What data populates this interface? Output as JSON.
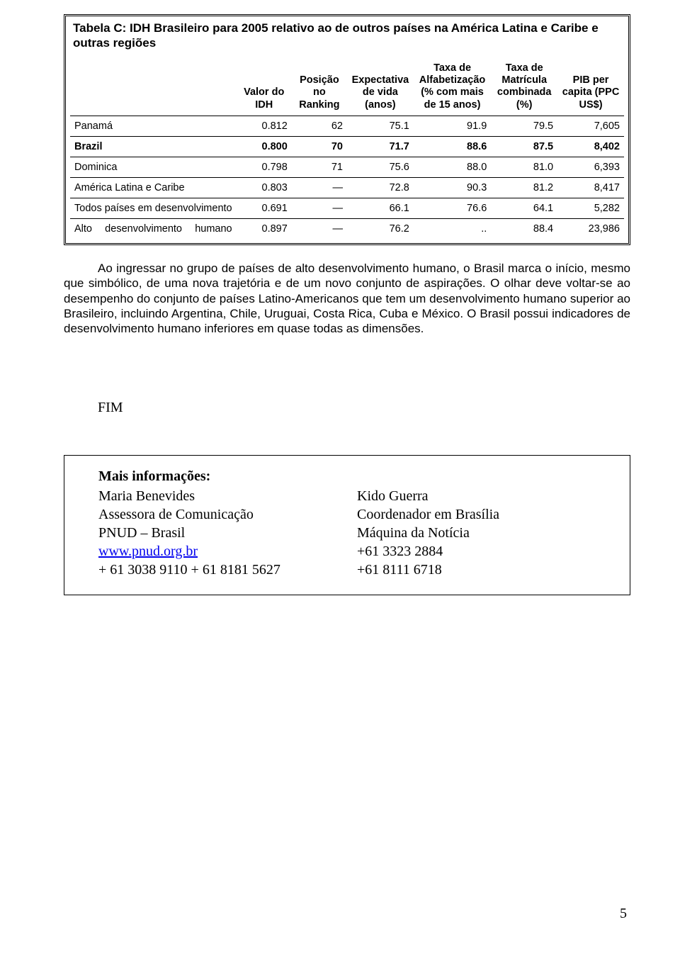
{
  "table": {
    "title": "Tabela C: IDH Brasileiro para 2005 relativo ao de outros países na América Latina e Caribe e outras regiões",
    "columns": [
      "",
      "Valor do IDH",
      "Posição no Ranking",
      "Expectativa de vida (anos)",
      "Taxa de Alfabetização (% com mais de 15 anos)",
      "Taxa de Matrícula combinada (%)",
      "PIB per capita (PPC US$)"
    ],
    "rows": [
      {
        "label": "Panamá",
        "idh": "0.812",
        "rank": "62",
        "life": "75.1",
        "lit": "91.9",
        "enrol": "79.5",
        "gdp": "7,605",
        "bold": false,
        "justify": false
      },
      {
        "label": "Brazil",
        "idh": "0.800",
        "rank": "70",
        "life": "71.7",
        "lit": "88.6",
        "enrol": "87.5",
        "gdp": "8,402",
        "bold": true,
        "justify": false
      },
      {
        "label": "Dominica",
        "idh": "0.798",
        "rank": "71",
        "life": "75.6",
        "lit": "88.0",
        "enrol": "81.0",
        "gdp": "6,393",
        "bold": false,
        "justify": false
      },
      {
        "label": "América Latina e Caribe",
        "idh": "0.803",
        "rank": "—",
        "life": "72.8",
        "lit": "90.3",
        "enrol": "81.2",
        "gdp": "8,417",
        "bold": false,
        "justify": false
      },
      {
        "label": "Todos países em desenvolvimento",
        "idh": "0.691",
        "rank": "—",
        "life": "66.1",
        "lit": "76.6",
        "enrol": "64.1",
        "gdp": "5,282",
        "bold": false,
        "justify": true
      },
      {
        "label": "Alto desenvolvimento humano",
        "idh": "0.897",
        "rank": "—",
        "life": "76.2",
        "lit": "..",
        "enrol": "88.4",
        "gdp": "23,986",
        "bold": false,
        "justify": true
      }
    ],
    "col_widths": [
      "30%",
      "10%",
      "10%",
      "12%",
      "14%",
      "12%",
      "12%"
    ]
  },
  "paragraph": "Ao ingressar no grupo de países de alto desenvolvimento humano, o Brasil marca o início, mesmo que simbólico, de uma nova trajetória e de um novo conjunto de aspirações. O olhar deve voltar-se ao desempenho do conjunto de países Latino-Americanos que tem um desenvolvimento humano superior ao Brasileiro, incluindo Argentina, Chile, Uruguai, Costa Rica, Cuba e México. O Brasil possui indicadores de desenvolvimento humano inferiores em quase todas as dimensões.",
  "fim": "FIM",
  "info": {
    "title": "Mais informações:",
    "left": {
      "l1": "Maria Benevides",
      "l2": "Assessora de Comunicação",
      "l3": "PNUD – Brasil",
      "link": "www.pnud.org.br",
      "l5": "+ 61 3038 9110 + 61 8181 5627"
    },
    "right": {
      "l1": "Kido Guerra",
      "l2": "Coordenador em Brasília",
      "l3": "Máquina da Notícia",
      "l4": "+61 3323 2884",
      "l5": "+61 8111 6718"
    }
  },
  "page_number": "5",
  "colors": {
    "text": "#000000",
    "link": "#0000ee",
    "background": "#ffffff"
  }
}
